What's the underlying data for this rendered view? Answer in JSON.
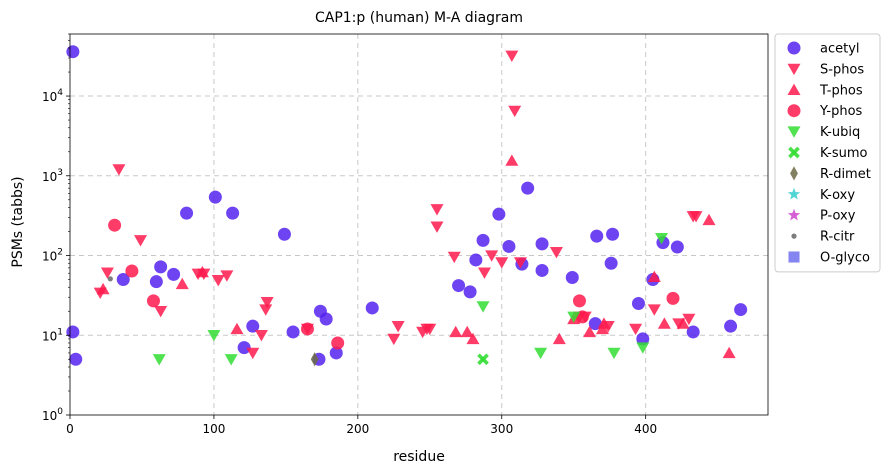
{
  "chart_data": {
    "type": "scatter",
    "title": "CAP1:p (human) M-A diagram",
    "xlabel": "residue",
    "ylabel": "PSMs (tabbs)",
    "xlim": [
      0,
      485
    ],
    "ylim": [
      1,
      60000
    ],
    "yscale": "log",
    "x_ticks": [
      0,
      100,
      200,
      300,
      400
    ],
    "y_ticks": [
      {
        "value": 1,
        "base": "10",
        "exp": "0"
      },
      {
        "value": 10,
        "base": "10",
        "exp": "1"
      },
      {
        "value": 100,
        "base": "10",
        "exp": "2"
      },
      {
        "value": 1000,
        "base": "10",
        "exp": "3"
      },
      {
        "value": 10000,
        "base": "10",
        "exp": "4"
      }
    ],
    "grid": true,
    "legend_position": "outside-right",
    "series": [
      {
        "name": "acetyl",
        "marker": "circle",
        "color": "#5522ee",
        "points": [
          [
            2,
            36000
          ],
          [
            2,
            11
          ],
          [
            4,
            5
          ],
          [
            37,
            50
          ],
          [
            60,
            47
          ],
          [
            63,
            72
          ],
          [
            72,
            58
          ],
          [
            81,
            340
          ],
          [
            101,
            540
          ],
          [
            113,
            340
          ],
          [
            121,
            7
          ],
          [
            127,
            13
          ],
          [
            149,
            185
          ],
          [
            155,
            11
          ],
          [
            173,
            5
          ],
          [
            174,
            20
          ],
          [
            178,
            16
          ],
          [
            185,
            6
          ],
          [
            210,
            22
          ],
          [
            270,
            42
          ],
          [
            278,
            35
          ],
          [
            282,
            88
          ],
          [
            287,
            155
          ],
          [
            298,
            330
          ],
          [
            305,
            130
          ],
          [
            314,
            78
          ],
          [
            318,
            700
          ],
          [
            328,
            140
          ],
          [
            328,
            65
          ],
          [
            349,
            53
          ],
          [
            365,
            14
          ],
          [
            366,
            175
          ],
          [
            376,
            80
          ],
          [
            377,
            185
          ],
          [
            395,
            25
          ],
          [
            398,
            9
          ],
          [
            405,
            50
          ],
          [
            412,
            145
          ],
          [
            422,
            128
          ],
          [
            433,
            11
          ],
          [
            459,
            13
          ],
          [
            466,
            21
          ]
        ]
      },
      {
        "name": "S-phos",
        "marker": "triangle-down",
        "color": "#ff1a4d",
        "points": [
          [
            21,
            34
          ],
          [
            26,
            61
          ],
          [
            34,
            1200
          ],
          [
            49,
            155
          ],
          [
            63,
            20
          ],
          [
            89,
            59
          ],
          [
            93,
            59
          ],
          [
            103,
            49
          ],
          [
            109,
            56
          ],
          [
            127,
            6
          ],
          [
            133,
            10
          ],
          [
            136,
            21
          ],
          [
            137,
            26
          ],
          [
            165,
            12
          ],
          [
            225,
            9
          ],
          [
            228,
            13
          ],
          [
            245,
            11
          ],
          [
            248,
            12
          ],
          [
            250,
            12
          ],
          [
            255,
            380
          ],
          [
            255,
            230
          ],
          [
            267,
            96
          ],
          [
            288,
            61
          ],
          [
            293,
            100
          ],
          [
            300,
            82
          ],
          [
            307,
            32000
          ],
          [
            309,
            6500
          ],
          [
            313,
            82
          ],
          [
            338,
            110
          ],
          [
            354,
            17
          ],
          [
            358,
            17
          ],
          [
            374,
            13
          ],
          [
            393,
            12
          ],
          [
            406,
            21
          ],
          [
            423,
            14
          ],
          [
            430,
            16
          ],
          [
            433,
            310
          ],
          [
            435,
            310
          ]
        ]
      },
      {
        "name": "T-phos",
        "marker": "triangle-up",
        "color": "#ff1a4d",
        "points": [
          [
            23,
            38
          ],
          [
            78,
            44
          ],
          [
            92,
            62
          ],
          [
            116,
            12
          ],
          [
            268,
            11
          ],
          [
            276,
            11
          ],
          [
            280,
            9
          ],
          [
            307,
            1550
          ],
          [
            340,
            9
          ],
          [
            350,
            16
          ],
          [
            361,
            11
          ],
          [
            370,
            12
          ],
          [
            371,
            14
          ],
          [
            406,
            54
          ],
          [
            413,
            14
          ],
          [
            426,
            14
          ],
          [
            444,
            280
          ],
          [
            458,
            6
          ]
        ]
      },
      {
        "name": "Y-phos",
        "marker": "circle",
        "color": "#ff1a4d",
        "points": [
          [
            31,
            240
          ],
          [
            43,
            64
          ],
          [
            58,
            27
          ],
          [
            165,
            12
          ],
          [
            186,
            8
          ],
          [
            354,
            27
          ],
          [
            356,
            17
          ],
          [
            419,
            29
          ]
        ]
      },
      {
        "name": "K-ubiq",
        "marker": "triangle-down",
        "color": "#33dd33",
        "points": [
          [
            62,
            5
          ],
          [
            100,
            10
          ],
          [
            112,
            5
          ],
          [
            287,
            23
          ],
          [
            327,
            6
          ],
          [
            350,
            17
          ],
          [
            378,
            6
          ],
          [
            398,
            7
          ],
          [
            411,
            165
          ]
        ]
      },
      {
        "name": "K-sumo",
        "marker": "x",
        "color": "#33dd33",
        "points": [
          [
            287,
            5
          ]
        ]
      },
      {
        "name": "R-dimet",
        "marker": "diamond",
        "color": "#6b6b47",
        "points": [
          [
            170,
            5
          ]
        ]
      },
      {
        "name": "K-oxy",
        "marker": "star",
        "color": "#33cccc",
        "points": []
      },
      {
        "name": "P-oxy",
        "marker": "star",
        "color": "#cc44cc",
        "points": []
      },
      {
        "name": "R-citr",
        "marker": "small-circle",
        "color": "#666666",
        "points": [
          [
            28,
            51
          ]
        ]
      },
      {
        "name": "O-glyco",
        "marker": "square",
        "color": "#7070ee",
        "points": []
      }
    ]
  }
}
